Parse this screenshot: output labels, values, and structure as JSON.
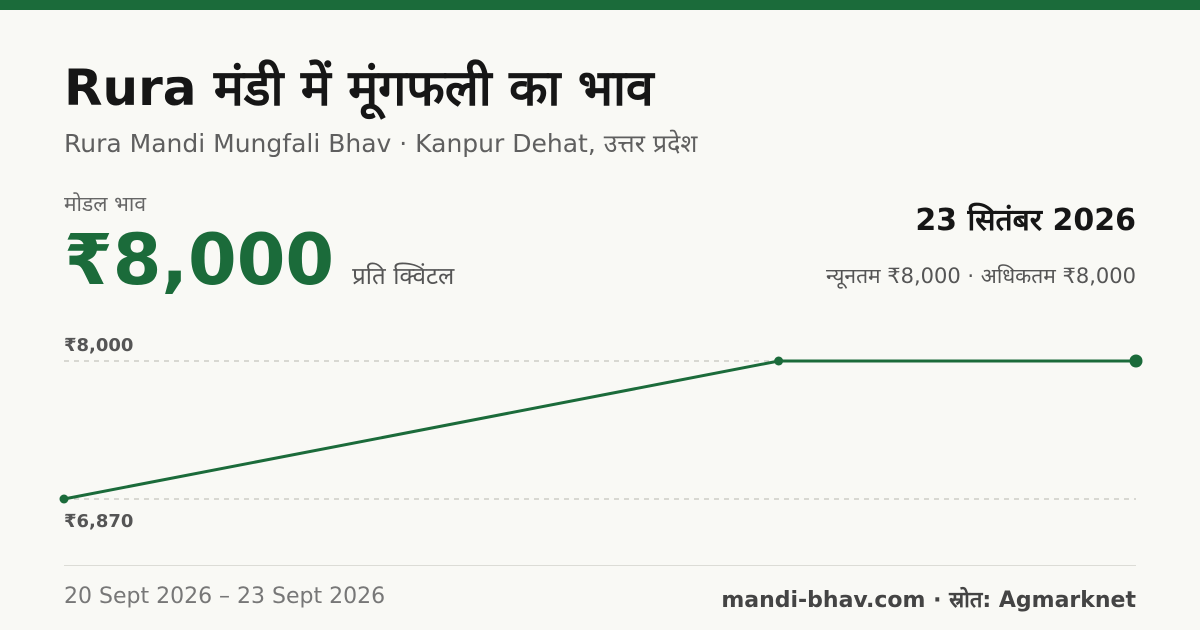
{
  "header": {
    "title": "Rura मंडी में मूंगफली का भाव",
    "subtitle": "Rura Mandi Mungfali Bhav · Kanpur Dehat, उत्तर प्रदेश"
  },
  "price": {
    "label": "मोडल भाव",
    "value": "₹8,000",
    "unit": "प्रति क्विंटल"
  },
  "summary": {
    "date": "23 सितंबर 2026",
    "range": "न्यूनतम ₹8,000 · अधिकतम ₹8,000"
  },
  "footer": {
    "date_range": "20 Sept 2026 – 23 Sept 2026",
    "source": "mandi-bhav.com · स्रोत: Agmarknet"
  },
  "colors": {
    "accent": "#1b6b3a",
    "background": "#f9f9f5"
  },
  "chart_data": {
    "type": "line",
    "x": [
      "2026-09-20",
      "2026-09-22",
      "2026-09-23"
    ],
    "series": [
      {
        "values": [
          6870,
          8000,
          8000
        ]
      }
    ],
    "reference_lines": [
      8000,
      6870
    ],
    "tick_labels": [
      "₹8,000",
      "₹6,870"
    ],
    "grid": false,
    "legend": "none"
  }
}
